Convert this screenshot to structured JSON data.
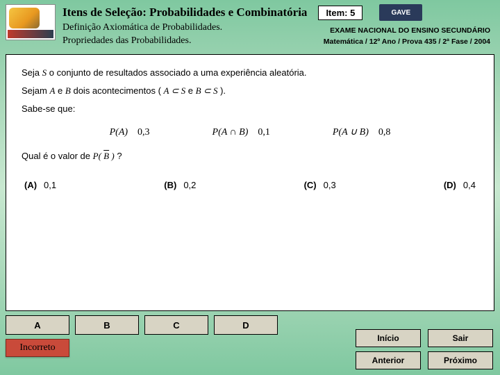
{
  "header": {
    "title": "Itens de Seleção: Probabilidades e Combinatória",
    "item_badge": "Item: 5",
    "subtitle_line1": "Definição Axiomática de Probabilidades.",
    "subtitle_line2": "Propriedades das Probabilidades.",
    "right_logo": "GAVE"
  },
  "exam": {
    "line1": "EXAME NACIONAL DO ENSINO SECUNDÁRIO",
    "line2": "Matemática / 12º Ano / Prova 435 / 2ª Fase / 2004"
  },
  "question": {
    "intro1_a": "Seja ",
    "intro1_S": "S",
    "intro1_b": " o conjunto de resultados associado a uma experiência aleatória.",
    "intro2_a": "Sejam ",
    "intro2_A": "A",
    "intro2_b": " e ",
    "intro2_B": "B",
    "intro2_c": " dois acontecimentos (",
    "intro2_AsubS": "A ⊂ S",
    "intro2_d": " e ",
    "intro2_BsubS": "B ⊂ S",
    "intro2_e": ").",
    "known": "Sabe-se que:",
    "pA_label": "P(A)",
    "pA_val": "0,3",
    "pAB_label": "P(A ∩ B)",
    "pAB_val": "0,1",
    "pAuB_label": "P(A ∪ B)",
    "pAuB_val": "0,8",
    "ask_a": "Qual é o valor de ",
    "ask_PB": "P( B̄ )",
    "ask_b": " ?"
  },
  "options": {
    "A_label": "(A)",
    "A_val": "0,1",
    "B_label": "(B)",
    "B_val": "0,2",
    "C_label": "(C)",
    "C_val": "0,3",
    "D_label": "(D)",
    "D_val": "0,4"
  },
  "answer_buttons": {
    "A": "A",
    "B": "B",
    "C": "C",
    "D": "D"
  },
  "feedback": "Incorreto",
  "nav": {
    "inicio": "Início",
    "sair": "Sair",
    "anterior": "Anterior",
    "proximo": "Próximo"
  }
}
